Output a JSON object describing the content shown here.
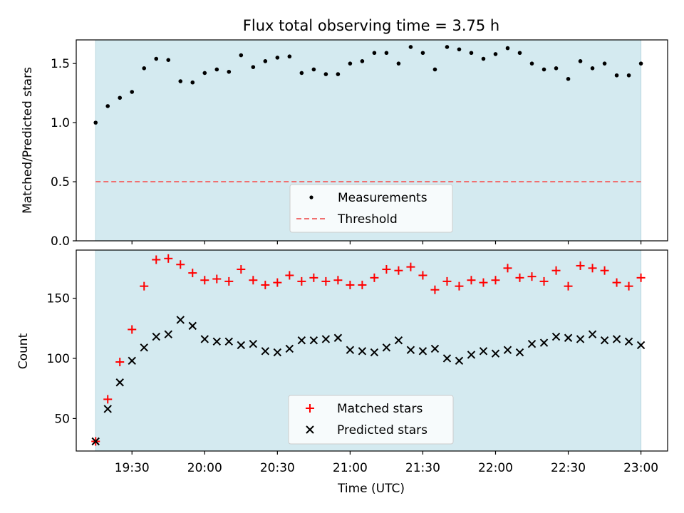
{
  "chart_data": {
    "title": "Flux total observing time = 3.75 h",
    "xlabel": "Time (UTC)",
    "x_ticks": [
      "19:30",
      "20:00",
      "20:30",
      "21:00",
      "21:30",
      "22:00",
      "22:30",
      "23:00"
    ],
    "x_range": [
      "19:07",
      "23:11"
    ],
    "shaded_span": [
      "19:15",
      "23:00"
    ],
    "shade_color": "#d4eaf0",
    "panels": [
      {
        "type": "scatter",
        "ylabel": "Matched/Predicted stars",
        "ylim": [
          0,
          1.7
        ],
        "y_ticks": [
          0.0,
          0.5,
          1.0,
          1.5
        ],
        "legend_position": "bottom-center",
        "series": [
          {
            "name": "Measurements",
            "marker": "dot",
            "color": "#000000",
            "x": [
              "19:15",
              "19:20",
              "19:25",
              "19:30",
              "19:35",
              "19:40",
              "19:45",
              "19:50",
              "19:55",
              "20:00",
              "20:05",
              "20:10",
              "20:15",
              "20:20",
              "20:25",
              "20:30",
              "20:35",
              "20:40",
              "20:45",
              "20:50",
              "20:55",
              "21:00",
              "21:05",
              "21:10",
              "21:15",
              "21:20",
              "21:25",
              "21:30",
              "21:35",
              "21:40",
              "21:45",
              "21:50",
              "21:55",
              "22:00",
              "22:05",
              "22:10",
              "22:15",
              "22:20",
              "22:25",
              "22:30",
              "22:35",
              "22:40",
              "22:45",
              "22:50",
              "22:55",
              "23:00"
            ],
            "y": [
              1.0,
              1.14,
              1.21,
              1.26,
              1.46,
              1.54,
              1.53,
              1.35,
              1.34,
              1.42,
              1.45,
              1.43,
              1.57,
              1.47,
              1.52,
              1.55,
              1.56,
              1.42,
              1.45,
              1.41,
              1.41,
              1.5,
              1.52,
              1.59,
              1.59,
              1.5,
              1.64,
              1.59,
              1.45,
              1.64,
              1.62,
              1.59,
              1.54,
              1.58,
              1.63,
              1.59,
              1.5,
              1.45,
              1.46,
              1.37,
              1.52,
              1.46,
              1.5,
              1.4,
              1.4,
              1.5
            ]
          },
          {
            "name": "Threshold",
            "marker": "dashed-line",
            "color": "#f07070",
            "y_constant": 0.5
          }
        ]
      },
      {
        "type": "scatter",
        "ylabel": "Count",
        "ylim": [
          23,
          190
        ],
        "y_ticks": [
          50,
          100,
          150
        ],
        "legend_position": "bottom-center",
        "series": [
          {
            "name": "Matched stars",
            "marker": "plus",
            "color": "#ff0000",
            "x": [
              "19:15",
              "19:20",
              "19:25",
              "19:30",
              "19:35",
              "19:40",
              "19:45",
              "19:50",
              "19:55",
              "20:00",
              "20:05",
              "20:10",
              "20:15",
              "20:20",
              "20:25",
              "20:30",
              "20:35",
              "20:40",
              "20:45",
              "20:50",
              "20:55",
              "21:00",
              "21:05",
              "21:10",
              "21:15",
              "21:20",
              "21:25",
              "21:30",
              "21:35",
              "21:40",
              "21:45",
              "21:50",
              "21:55",
              "22:00",
              "22:05",
              "22:10",
              "22:15",
              "22:20",
              "22:25",
              "22:30",
              "22:35",
              "22:40",
              "22:45",
              "22:50",
              "22:55",
              "23:00"
            ],
            "y": [
              31,
              66,
              97,
              124,
              160,
              182,
              183,
              178,
              171,
              165,
              166,
              164,
              174,
              165,
              161,
              163,
              169,
              164,
              167,
              164,
              165,
              161,
              161,
              167,
              174,
              173,
              176,
              169,
              157,
              164,
              160,
              165,
              163,
              165,
              175,
              167,
              168,
              164,
              173,
              160,
              177,
              175,
              173,
              163,
              160,
              167
            ]
          },
          {
            "name": "Predicted stars",
            "marker": "x",
            "color": "#000000",
            "x": [
              "19:15",
              "19:20",
              "19:25",
              "19:30",
              "19:35",
              "19:40",
              "19:45",
              "19:50",
              "19:55",
              "20:00",
              "20:05",
              "20:10",
              "20:15",
              "20:20",
              "20:25",
              "20:30",
              "20:35",
              "20:40",
              "20:45",
              "20:50",
              "20:55",
              "21:00",
              "21:05",
              "21:10",
              "21:15",
              "21:20",
              "21:25",
              "21:30",
              "21:35",
              "21:40",
              "21:45",
              "21:50",
              "21:55",
              "22:00",
              "22:05",
              "22:10",
              "22:15",
              "22:20",
              "22:25",
              "22:30",
              "22:35",
              "22:40",
              "22:45",
              "22:50",
              "22:55",
              "23:00"
            ],
            "y": [
              31,
              58,
              80,
              98,
              109,
              118,
              120,
              132,
              127,
              116,
              114,
              114,
              111,
              112,
              106,
              105,
              108,
              115,
              115,
              116,
              117,
              107,
              106,
              105,
              109,
              115,
              107,
              106,
              108,
              100,
              98,
              103,
              106,
              104,
              107,
              105,
              112,
              113,
              118,
              117,
              116,
              120,
              115,
              116,
              114,
              111
            ]
          }
        ]
      }
    ]
  }
}
